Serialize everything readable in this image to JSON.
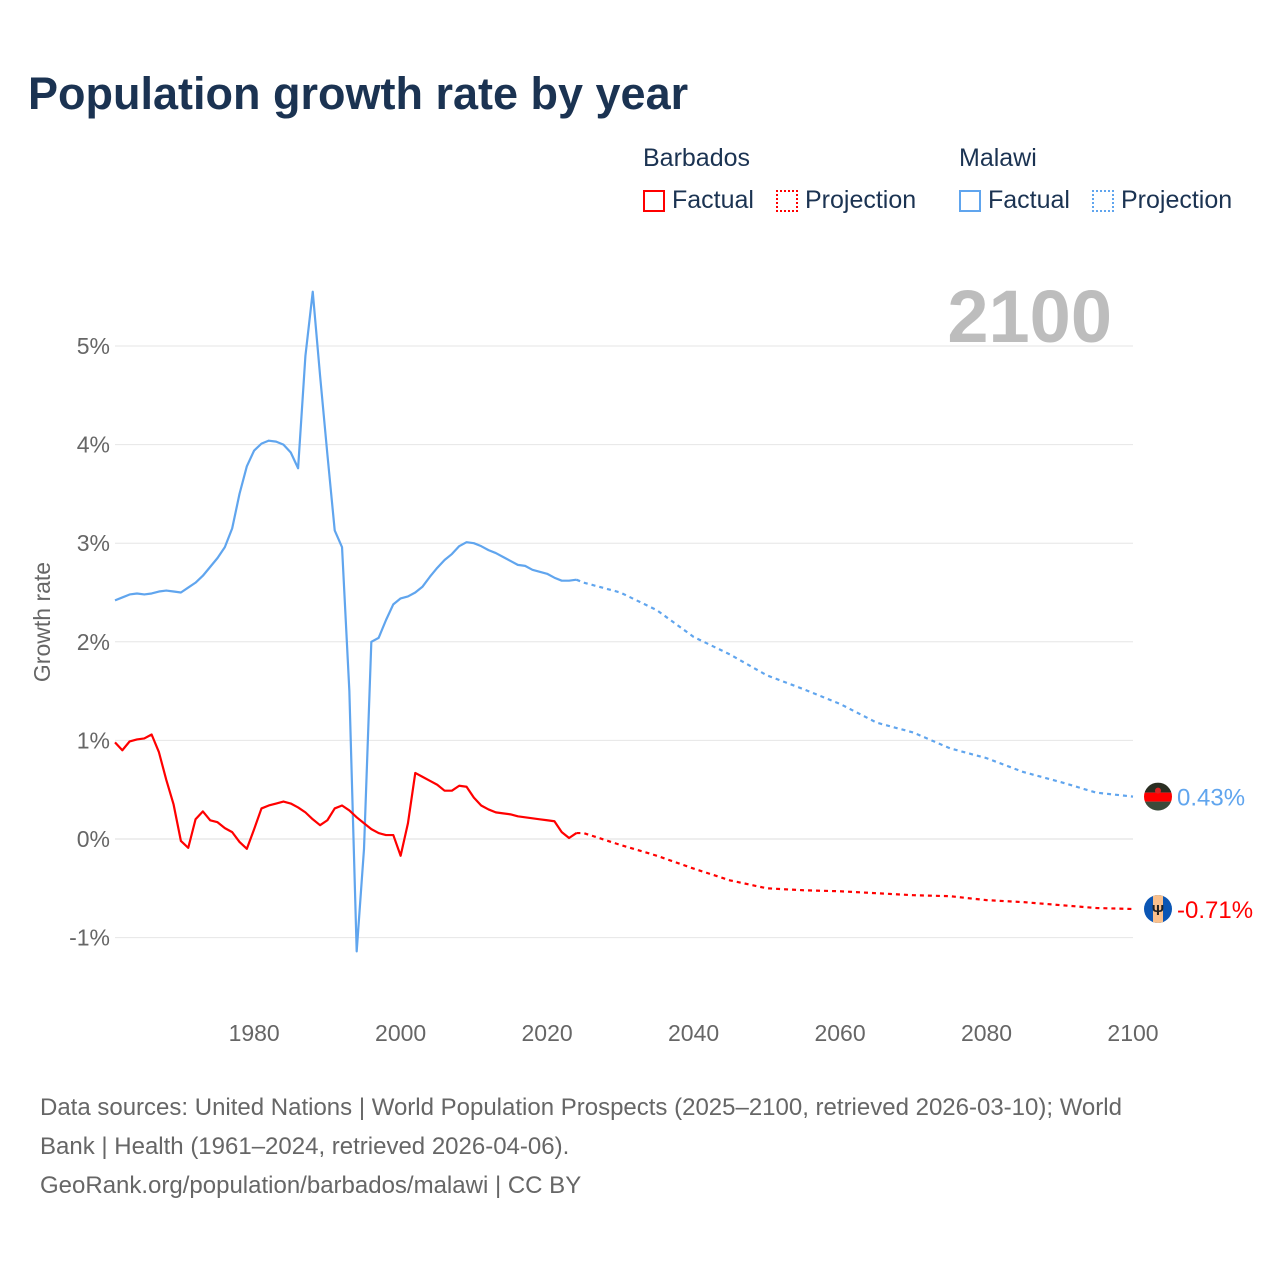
{
  "title": "Population growth rate by year",
  "legend": {
    "groups": [
      {
        "name": "Barbados",
        "color": "#ff0000",
        "items": [
          "Factual",
          "Projection"
        ]
      },
      {
        "name": "Malawi",
        "color": "#60a5ee",
        "items": [
          "Factual",
          "Projection"
        ]
      }
    ]
  },
  "footer": {
    "line1": "Data sources: United Nations | World Population Prospects (2025–2100, retrieved 2026-03-10); World",
    "line2": "Bank | Health (1961–2024, retrieved 2026-04-06).",
    "line3": "GeoRank.org/population/barbados/malawi | CC BY"
  },
  "chart_data": {
    "type": "line",
    "title": "Population growth rate by year",
    "year_label": "2100",
    "xlabel": "",
    "ylabel": "Growth rate",
    "xlim": [
      1961,
      2100
    ],
    "ylim": [
      -1.45,
      5.65
    ],
    "xticks": [
      1980,
      2000,
      2020,
      2040,
      2060,
      2080,
      2100
    ],
    "yticks": [
      -1,
      0,
      1,
      2,
      3,
      4,
      5
    ],
    "ytick_labels": [
      "-1%",
      "0%",
      "1%",
      "2%",
      "3%",
      "4%",
      "5%"
    ],
    "grid": true,
    "legend_position": "top-right",
    "series": [
      {
        "name": "Malawi",
        "color": "#60a5ee",
        "end_label": "0.43%",
        "flag": "malawi-flag",
        "factual": {
          "x_start": 1961,
          "values": [
            2.42,
            2.45,
            2.48,
            2.49,
            2.48,
            2.49,
            2.51,
            2.52,
            2.51,
            2.5,
            2.55,
            2.6,
            2.67,
            2.76,
            2.85,
            2.96,
            3.15,
            3.5,
            3.78,
            3.94,
            4.01,
            4.04,
            4.03,
            4.0,
            3.92,
            3.76,
            4.9,
            5.55,
            4.7,
            3.9,
            3.13,
            2.96,
            1.5,
            -1.14,
            -0.1,
            2.0,
            2.04,
            2.22,
            2.38,
            2.44,
            2.46,
            2.5,
            2.56,
            2.66,
            2.75,
            2.83,
            2.89,
            2.97,
            3.01,
            3.0,
            2.97,
            2.93,
            2.9,
            2.86,
            2.82,
            2.78,
            2.77,
            2.73,
            2.71,
            2.69,
            2.65,
            2.62,
            2.62,
            2.63
          ]
        },
        "projection": {
          "x": [
            2024,
            2025,
            2030,
            2035,
            2040,
            2045,
            2050,
            2055,
            2060,
            2065,
            2070,
            2075,
            2080,
            2085,
            2090,
            2095,
            2100
          ],
          "values": [
            2.63,
            2.6,
            2.5,
            2.32,
            2.05,
            1.87,
            1.66,
            1.52,
            1.37,
            1.18,
            1.08,
            0.92,
            0.82,
            0.68,
            0.58,
            0.47,
            0.43
          ]
        }
      },
      {
        "name": "Barbados",
        "color": "#ff0000",
        "end_label": "-0.71%",
        "flag": "barbados-flag",
        "factual": {
          "x_start": 1961,
          "values": [
            0.98,
            0.9,
            0.99,
            1.01,
            1.02,
            1.06,
            0.88,
            0.6,
            0.35,
            -0.02,
            -0.09,
            0.2,
            0.28,
            0.19,
            0.17,
            0.11,
            0.07,
            -0.03,
            -0.1,
            0.1,
            0.31,
            0.34,
            0.36,
            0.38,
            0.36,
            0.32,
            0.27,
            0.2,
            0.14,
            0.19,
            0.31,
            0.34,
            0.29,
            0.22,
            0.16,
            0.1,
            0.06,
            0.04,
            0.04,
            -0.17,
            0.16,
            0.67,
            0.63,
            0.59,
            0.55,
            0.49,
            0.49,
            0.54,
            0.53,
            0.42,
            0.34,
            0.3,
            0.27,
            0.26,
            0.25,
            0.23,
            0.22,
            0.21,
            0.2,
            0.19,
            0.18,
            0.07,
            0.01,
            0.06
          ]
        },
        "projection": {
          "x": [
            2024,
            2025,
            2030,
            2035,
            2040,
            2045,
            2050,
            2055,
            2060,
            2065,
            2070,
            2075,
            2080,
            2085,
            2090,
            2095,
            2100
          ],
          "values": [
            0.06,
            0.06,
            -0.06,
            -0.17,
            -0.3,
            -0.42,
            -0.5,
            -0.52,
            -0.53,
            -0.55,
            -0.57,
            -0.58,
            -0.62,
            -0.64,
            -0.67,
            -0.7,
            -0.71
          ]
        }
      }
    ]
  }
}
